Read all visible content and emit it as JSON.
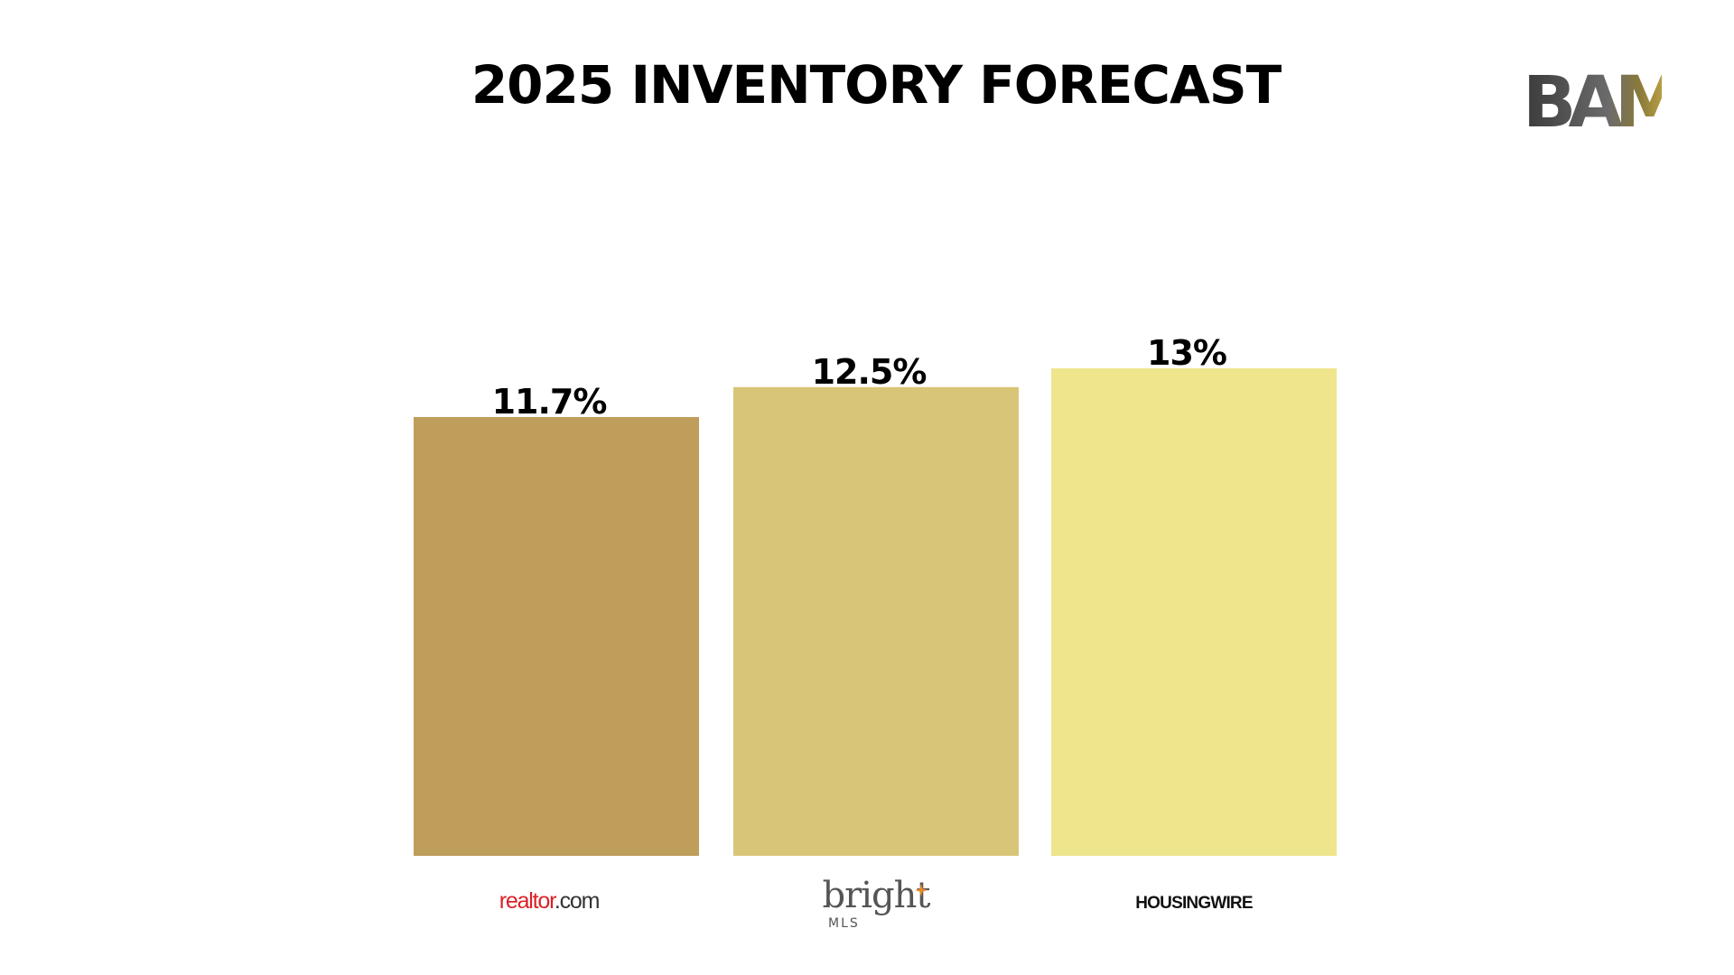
{
  "slide": {
    "title": "2025 INVENTORY FORECAST",
    "brand_logo": "BAM"
  },
  "chart_data": {
    "type": "bar",
    "categories": [
      "realtor.com",
      "bright MLS",
      "HOUSINGWIRE"
    ],
    "values": [
      11.7,
      12.5,
      13
    ],
    "value_labels": [
      "11.7%",
      "12.5%",
      "13%"
    ],
    "ylim": [
      0,
      15.6
    ],
    "grid": false,
    "legend": "none",
    "colors": [
      "#BF9D5B",
      "#D9C578",
      "#EEE58C"
    ],
    "label_colors": {
      "realtor": "#D92228",
      "realtor_dot": "#333333",
      "bright": "#555555",
      "bright_star": "#E58A2B",
      "housingwire": "#111111"
    }
  }
}
